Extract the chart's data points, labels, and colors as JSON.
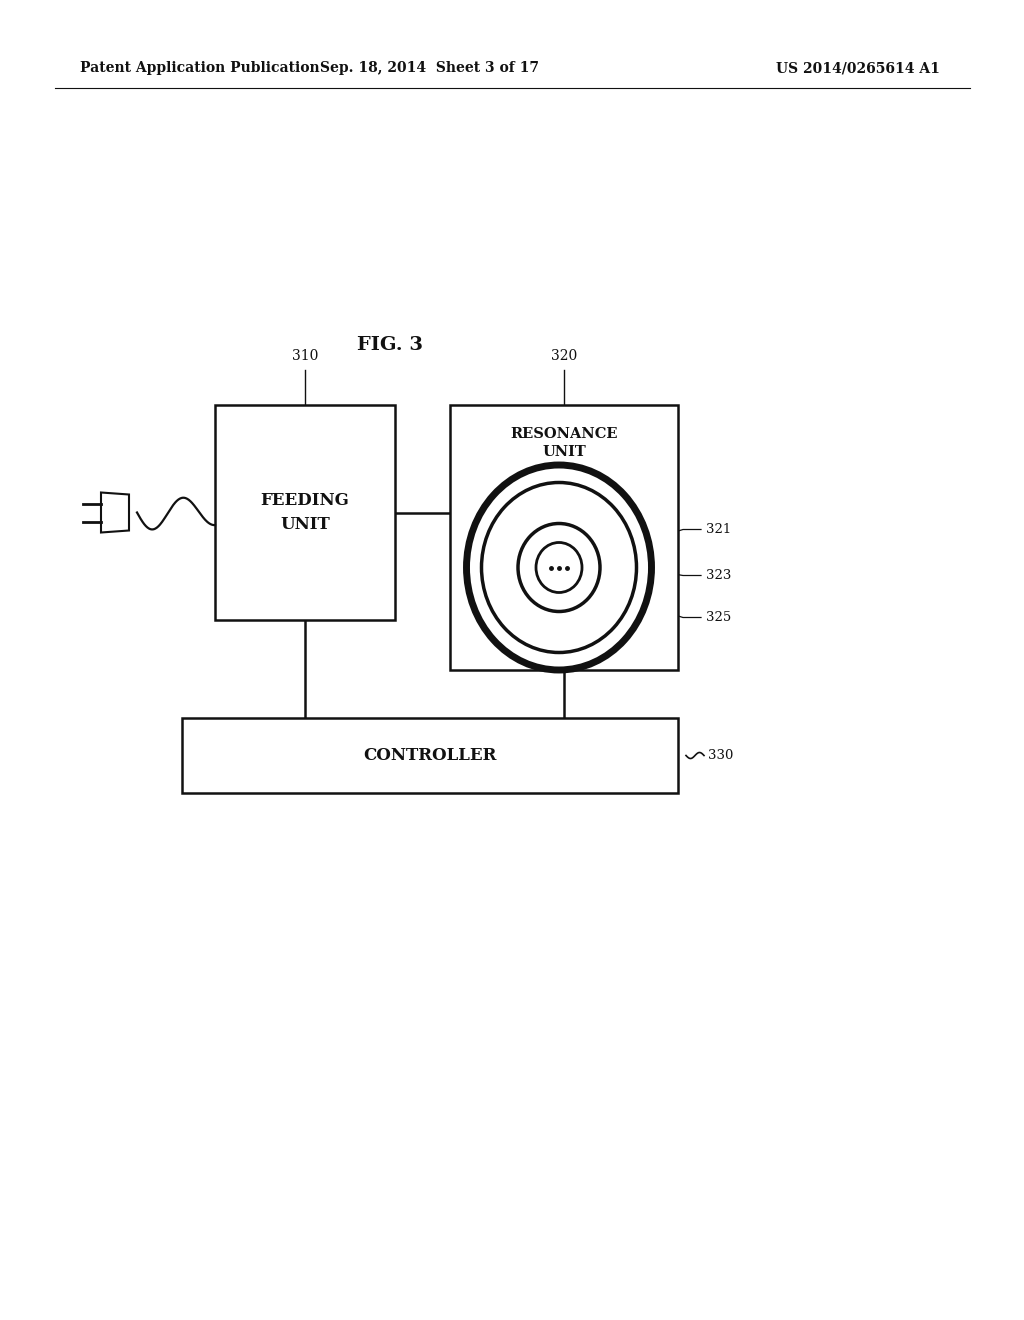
{
  "bg_color": "#ffffff",
  "header_left": "Patent Application Publication",
  "header_center": "Sep. 18, 2014  Sheet 3 of 17",
  "header_right": "US 2014/0265614 A1",
  "fig_label": "FIG. 3",
  "feeding_unit_label": "FEEDING\nUNIT",
  "feeding_unit_ref": "310",
  "resonance_unit_label": "RESONANCE\nUNIT",
  "resonance_unit_ref": "320",
  "controller_label": "CONTROLLER",
  "controller_ref": "330",
  "ref_321": "321",
  "ref_323": "323",
  "ref_325": "325",
  "line_color": "#111111",
  "text_color": "#111111"
}
